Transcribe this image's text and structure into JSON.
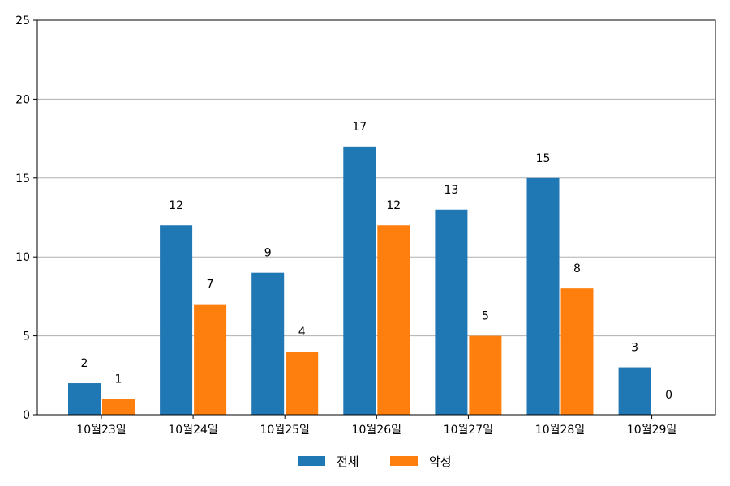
{
  "chart_data": {
    "type": "bar",
    "categories": [
      "10월23일",
      "10월24일",
      "10월25일",
      "10월26일",
      "10월27일",
      "10월28일",
      "10월29일"
    ],
    "series": [
      {
        "name": "전체",
        "color": "#1f77b4",
        "values": [
          2,
          12,
          9,
          17,
          13,
          15,
          3
        ]
      },
      {
        "name": "악성",
        "color": "#ff7f0e",
        "values": [
          1,
          7,
          4,
          12,
          5,
          8,
          0
        ]
      }
    ],
    "ylim": [
      0,
      25
    ],
    "yticks": [
      0,
      5,
      10,
      15,
      20,
      25
    ],
    "grid": "y",
    "legend_position": "bottom-center"
  }
}
